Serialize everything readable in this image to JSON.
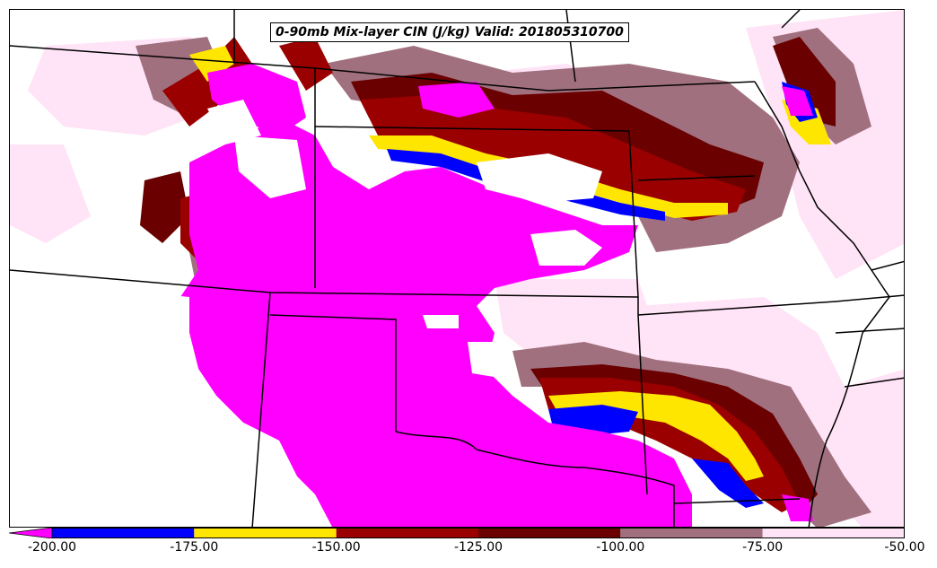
{
  "title": "0-90mb Mix-layer CIN (J/kg) Valid: 201805310700",
  "colorbar": {
    "ticks": [
      "-200.00",
      "-175.00",
      "-150.00",
      "-125.00",
      "-100.00",
      "-75.00",
      "-50.00"
    ],
    "bins": [
      {
        "range": [
          -200,
          -175
        ],
        "color": "#0000ff"
      },
      {
        "range": [
          -175,
          -150
        ],
        "color": "#ffe600"
      },
      {
        "range": [
          -150,
          -125
        ],
        "color": "#9b0000"
      },
      {
        "range": [
          -125,
          -100
        ],
        "color": "#6a0000"
      },
      {
        "range": [
          -100,
          -75
        ],
        "color": "#a0707e"
      },
      {
        "range": [
          -75,
          -50
        ],
        "color": "#ffe3f6"
      }
    ],
    "under_color": "#ff00ff",
    "extend": "min"
  },
  "colors": {
    "strong_cin": "#ff00ff",
    "weak_cin": "#ffe3f6",
    "border": "#000000"
  }
}
